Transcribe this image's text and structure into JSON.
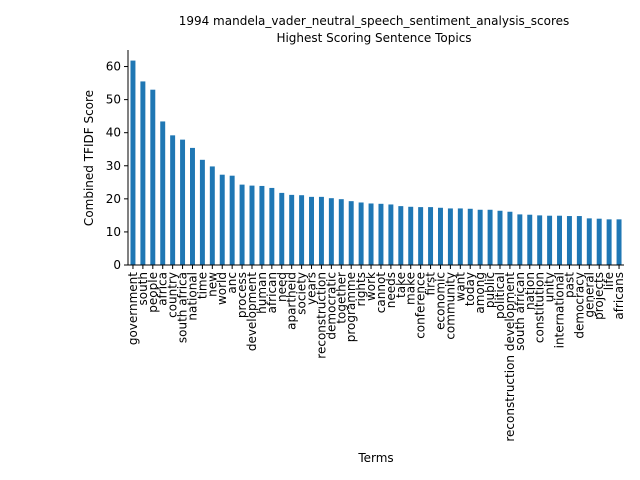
{
  "chart_data": {
    "type": "bar",
    "title_line1": "1994 mandela_vader_neutral_speech_sentiment_analysis_scores",
    "title_line2": "Highest Scoring Sentence Topics",
    "xlabel": "Terms",
    "ylabel": "Combined TFIDF Score",
    "ylim": [
      0,
      65
    ],
    "yticks": [
      0,
      10,
      20,
      30,
      40,
      50,
      60
    ],
    "grid": false,
    "bar_color": "#1f77b4",
    "categories": [
      "government",
      "south",
      "people",
      "africa",
      "country",
      "south africa",
      "national",
      "time",
      "new",
      "world",
      "anc",
      "process",
      "development",
      "human",
      "african",
      "need",
      "apartheid",
      "society",
      "years",
      "reconstruction",
      "democratic",
      "together",
      "programme",
      "rights",
      "work",
      "cannot",
      "needs",
      "take",
      "make",
      "conference",
      "first",
      "economic",
      "community",
      "want",
      "today",
      "among",
      "public",
      "political",
      "reconstruction development",
      "south african",
      "nation",
      "constitution",
      "unity",
      "international",
      "past",
      "democracy",
      "general",
      "projects",
      "life",
      "africans"
    ],
    "values": [
      61.8,
      55.5,
      53.0,
      43.4,
      39.2,
      37.9,
      35.4,
      31.8,
      29.8,
      27.3,
      27.0,
      24.3,
      24.0,
      23.9,
      23.3,
      21.8,
      21.2,
      21.1,
      20.6,
      20.6,
      20.2,
      19.9,
      19.3,
      18.9,
      18.6,
      18.5,
      18.3,
      17.8,
      17.6,
      17.5,
      17.5,
      17.3,
      17.1,
      17.1,
      17.0,
      16.7,
      16.7,
      16.4,
      16.1,
      15.3,
      15.2,
      15.0,
      14.9,
      14.9,
      14.8,
      14.8,
      14.1,
      14.0,
      13.8,
      13.8
    ]
  }
}
